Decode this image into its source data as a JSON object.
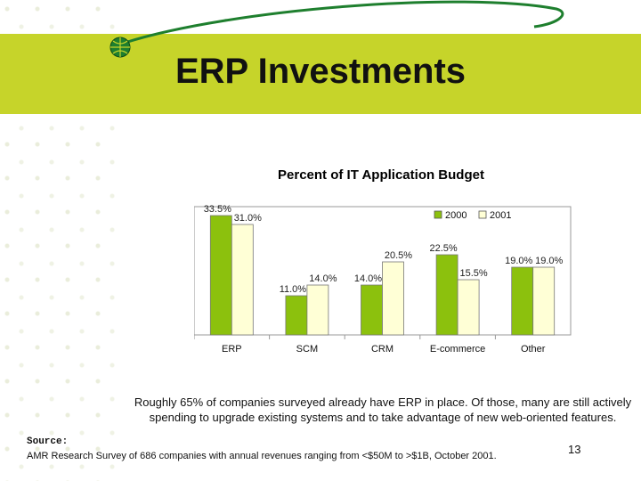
{
  "slide": {
    "title": "ERP Investments",
    "note": "Roughly 65% of companies surveyed already have ERP in place. Of those, many are still actively spending to upgrade existing systems and to take advantage of new web-oriented features.",
    "source_label": "Source:",
    "source_text": "AMR Research Survey of 686 companies with annual revenues ranging from <$50M to >$1B, October 2001.",
    "page_number": "13"
  },
  "colors": {
    "band": "#c6d42a",
    "series_2000": "#8cc10d",
    "series_2001": "#ffffd6",
    "swoosh": "#1e7f2e"
  },
  "chart_data": {
    "type": "bar",
    "title": "Percent of IT Application Budget",
    "categories": [
      "ERP",
      "SCM",
      "CRM",
      "E-commerce",
      "Other"
    ],
    "series": [
      {
        "name": "2000",
        "values": [
          33.5,
          11.0,
          14.0,
          22.5,
          19.0
        ],
        "labels": [
          "33.5%",
          "11.0%",
          "14.0%",
          "22.5%",
          "19.0%"
        ]
      },
      {
        "name": "2001",
        "values": [
          31.0,
          14.0,
          20.5,
          15.5,
          19.0
        ],
        "labels": [
          "31.0%",
          "14.0%",
          "20.5%",
          "15.5%",
          "19.0%"
        ]
      }
    ],
    "ylim": [
      0,
      36
    ],
    "legend": "top-right",
    "grid": false
  }
}
